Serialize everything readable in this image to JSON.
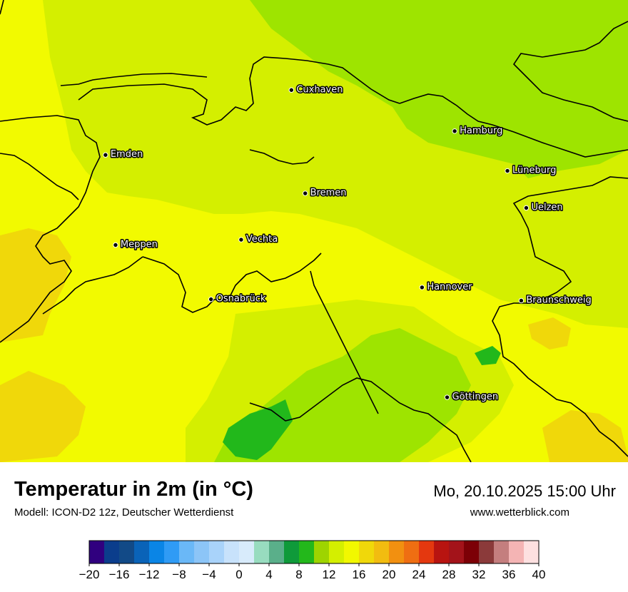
{
  "map": {
    "cities": [
      {
        "name": "Cuxhaven",
        "lon": 8.69,
        "lat": 53.86
      },
      {
        "name": "Hamburg",
        "lon": 9.99,
        "lat": 53.55
      },
      {
        "name": "Emden",
        "lon": 7.21,
        "lat": 53.37
      },
      {
        "name": "Lüneburg",
        "lon": 10.41,
        "lat": 53.25
      },
      {
        "name": "Bremen",
        "lon": 8.8,
        "lat": 53.08
      },
      {
        "name": "Uelzen",
        "lon": 10.56,
        "lat": 52.97
      },
      {
        "name": "Meppen",
        "lon": 7.29,
        "lat": 52.69
      },
      {
        "name": "Vechta",
        "lon": 8.29,
        "lat": 52.73
      },
      {
        "name": "Hannover",
        "lon": 9.73,
        "lat": 52.37
      },
      {
        "name": "Osnabrück",
        "lon": 8.05,
        "lat": 52.28
      },
      {
        "name": "Braunschweig",
        "lon": 10.52,
        "lat": 52.27
      },
      {
        "name": "Göttingen",
        "lon": 9.93,
        "lat": 51.54
      }
    ]
  },
  "header": {
    "title": "Temperatur in 2m (in °C)",
    "subtitle": "Modell: ICON-D2 12z, Deutscher Wetterdienst",
    "datetime": "Mo, 20.10.2025 15:00 Uhr",
    "website": "www.wetterblick.com"
  },
  "legend": {
    "unit": "°C",
    "min": -20,
    "max": 40,
    "step": 2,
    "tick_labels": [
      "−20",
      "−16",
      "−12",
      "−8",
      "−4",
      "0",
      "4",
      "8",
      "12",
      "16",
      "20",
      "24",
      "28",
      "32",
      "36",
      "40"
    ],
    "colors": [
      "#30007f",
      "#0b3d8c",
      "#124a87",
      "#0a63b8",
      "#0a85e6",
      "#2f9bf5",
      "#6ab8f7",
      "#8cc5f7",
      "#a9d3fa",
      "#c8e2fb",
      "#d8ebfb",
      "#98dcbf",
      "#5aaf8a",
      "#0f9a3a",
      "#23b81b",
      "#9ed400",
      "#d4ef00",
      "#f2f800",
      "#f0d80a",
      "#f2bc10",
      "#f29010",
      "#ef6e12",
      "#e4380f",
      "#b81410",
      "#a3131a",
      "#7c0006",
      "#8b3a3a",
      "#c47e7e",
      "#f4b4b4",
      "#fde0e0"
    ]
  },
  "colors": {
    "yellow": "#f2fa00",
    "lime": "#d4ef00",
    "green_light": "#9ee400",
    "green": "#22b81b",
    "orange_yellow": "#f0d80a"
  }
}
